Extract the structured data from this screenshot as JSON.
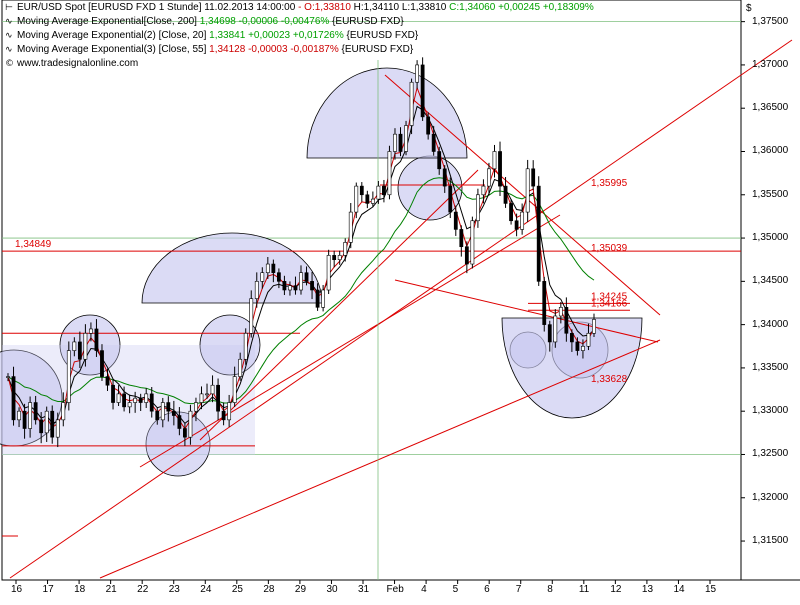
{
  "header": {
    "main_title": "EUR/USD Spot [EURUSD FXD  1 Stunde] 11.02.2013 14:00:00",
    "main_values": {
      "o": "- O:1,33810",
      "h": "H:1,34110",
      "l": "L:1,33810",
      "c": "C:1,34060 +0,00245 +0,18309%"
    },
    "ema1": {
      "label": "Moving Average Exponential[Close, 200]",
      "value": "1,34698 -0,00006 -0,00476%",
      "suffix": "{EURUSD FXD}"
    },
    "ema2": {
      "label": "Moving Average Exponential(2) [Close, 20]",
      "value": "1,33841 +0,00023 +0,01726%",
      "suffix": "{EURUSD FXD}"
    },
    "ema3": {
      "label": "Moving Average Exponential(3) [Close, 55]",
      "value": "1,34128 -0,00003 -0,00187%",
      "suffix": "{EURUSD FXD}"
    },
    "copyright": "www.tradesignalonline.com",
    "currency": "$"
  },
  "colors": {
    "up": "#00aa00",
    "down": "#d00000",
    "ema1": "#008000",
    "ema2": "#cc0000",
    "ema3": "#000000",
    "line": "#dd0000",
    "circle_fill": "#c8c8f0",
    "circle_stroke": "#000000",
    "grid": "#7fbf7f"
  },
  "chart_data": {
    "type": "candlestick",
    "y_axis": {
      "range": [
        1.3105,
        1.3775
      ],
      "ticks": [
        "1,31500",
        "1,32000",
        "1,32500",
        "1,33000",
        "1,33500",
        "1,34000",
        "1,34500",
        "1,35000",
        "1,35500",
        "1,36000",
        "1,36500",
        "1,37000",
        "1,37500"
      ]
    },
    "x_axis": {
      "ticks": [
        "16",
        "17",
        "18",
        "21",
        "22",
        "23",
        "24",
        "25",
        "28",
        "29",
        "30",
        "31",
        "Feb",
        "4",
        "5",
        "6",
        "7",
        "8",
        "11",
        "12",
        "13",
        "14",
        "15"
      ]
    },
    "price_path": [
      [
        1.334,
        1.329,
        1.33,
        1.328,
        1.331,
        1.329,
        1.3275,
        1.33,
        1.327,
        1.329
      ],
      [
        1.331,
        1.337,
        1.338,
        1.336,
        1.339,
        1.3395,
        1.337,
        1.334
      ],
      [
        1.333,
        1.331,
        1.332,
        1.3305,
        1.331,
        1.3315
      ],
      [
        1.331,
        1.332,
        1.33,
        1.329,
        1.331
      ],
      [
        1.33,
        1.3295,
        1.328,
        1.327,
        1.33,
        1.331,
        1.332
      ],
      [
        1.332,
        1.333,
        1.33,
        1.329,
        1.331,
        1.334
      ],
      [
        1.336,
        1.339,
        1.343,
        1.345,
        1.346
      ],
      [
        1.347,
        1.346,
        1.345,
        1.344,
        1.3445
      ],
      [
        1.344,
        1.346,
        1.345,
        1.344,
        1.342,
        1.344
      ],
      [
        1.348,
        1.3475,
        1.348,
        1.3495,
        1.353
      ],
      [
        1.356,
        1.355,
        1.354,
        1.3545,
        1.356
      ],
      [
        1.355,
        1.36,
        1.362,
        1.36
      ],
      [
        1.363,
        1.368,
        1.37,
        1.364,
        1.362
      ],
      [
        1.36,
        1.358,
        1.356,
        1.353,
        1.351
      ],
      [
        1.349,
        1.347,
        1.352,
        1.355
      ],
      [
        1.356,
        1.358,
        1.36,
        1.356
      ],
      [
        1.354,
        1.352,
        1.351,
        1.353,
        1.358
      ],
      [
        1.356,
        1.345,
        1.34,
        1.338,
        1.341
      ],
      [
        1.342,
        1.339,
        1.338,
        1.337
      ],
      [
        1.3375,
        1.339,
        1.3406
      ]
    ],
    "hlines": [
      {
        "value": 1.34849,
        "label": "1,34849"
      },
      {
        "value": 1.339,
        "label": ""
      },
      {
        "value": 1.326,
        "label": ""
      },
      {
        "value": 1.34245,
        "label": "1,34245"
      },
      {
        "value": 1.34166,
        "label": "1,34166"
      }
    ],
    "annotations": [
      {
        "value": 1.35995,
        "label": "1,35995"
      },
      {
        "value": 1.35039,
        "label": "1,35039"
      },
      {
        "value": 1.33628,
        "label": "1,33628"
      }
    ]
  }
}
